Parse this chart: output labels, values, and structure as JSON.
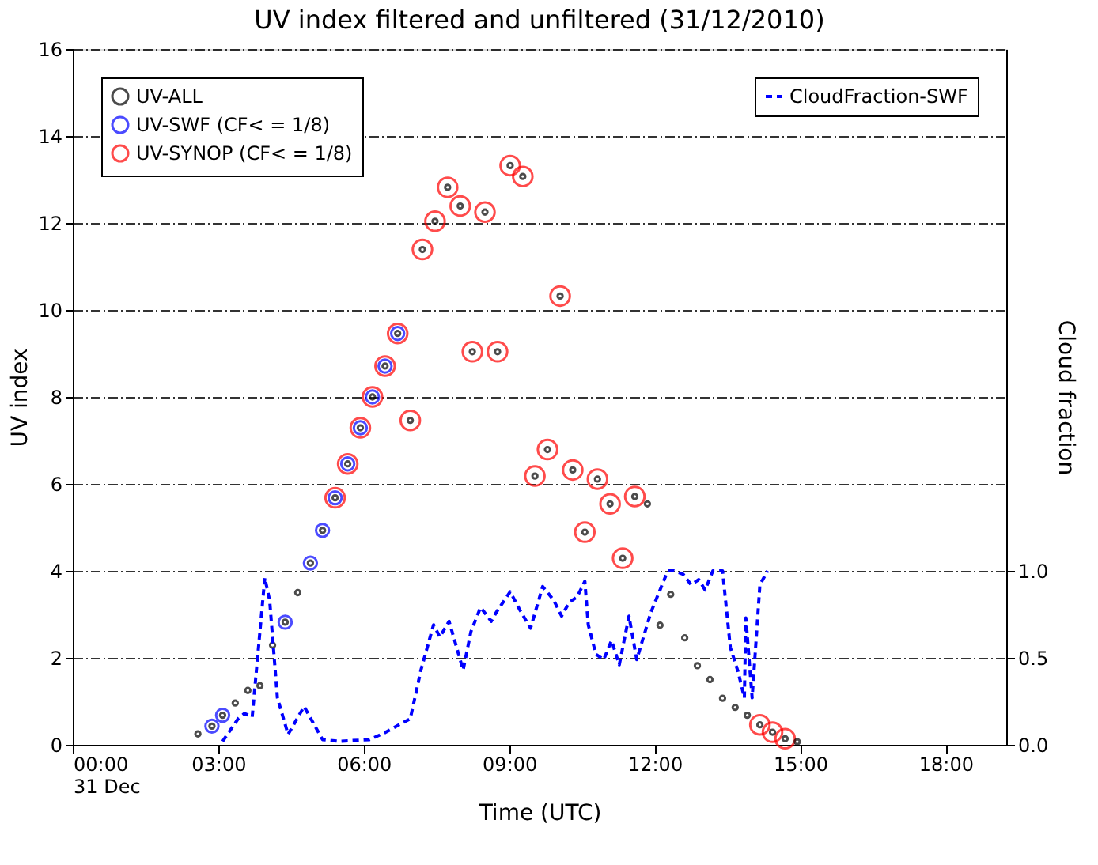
{
  "chart_data": {
    "type": "scatter",
    "title": "UV index filtered and unfiltered (31/12/2010)",
    "xlabel": "Time (UTC)",
    "ylabel": "UV index",
    "y2label": "Cloud fraction",
    "xlim": [
      0,
      19.25
    ],
    "xticks": [
      {
        "value": 0,
        "label": "00:00\n31 Dec"
      },
      {
        "value": 3,
        "label": "03:00"
      },
      {
        "value": 6,
        "label": "06:00"
      },
      {
        "value": 9,
        "label": "09:00"
      },
      {
        "value": 12,
        "label": "12:00"
      },
      {
        "value": 15,
        "label": "15:00"
      },
      {
        "value": 18,
        "label": "18:00"
      }
    ],
    "ylim": [
      0,
      16
    ],
    "yticks": [
      0,
      2,
      4,
      6,
      8,
      10,
      12,
      14,
      16
    ],
    "y2lim": [
      0,
      4
    ],
    "y2ticks": [
      {
        "value": 0,
        "label": "0.0"
      },
      {
        "value": 0.5,
        "label": "0.5"
      },
      {
        "value": 1,
        "label": "1.0"
      }
    ],
    "grid": "y",
    "legend": "top",
    "series": [
      {
        "name": "UV-SYNOP (CF< = 1/8)",
        "marker": "circle",
        "color": "#ff0000",
        "x": [
          5.41,
          5.67,
          5.93,
          6.18,
          6.44,
          6.7,
          6.96,
          7.21,
          7.47,
          7.73,
          7.99,
          8.24,
          8.5,
          8.76,
          9.02,
          9.28,
          9.53,
          9.79,
          10.05,
          10.31,
          10.56,
          10.82,
          11.08,
          11.34,
          11.59,
          14.17,
          14.43,
          14.69
        ],
        "values": [
          5.68,
          6.46,
          7.29,
          8.0,
          8.71,
          9.46,
          7.46,
          11.39,
          12.04,
          12.82,
          12.39,
          9.04,
          12.25,
          9.04,
          13.32,
          13.07,
          6.18,
          6.79,
          10.32,
          6.32,
          4.89,
          6.11,
          5.54,
          4.29,
          5.71,
          0.46,
          0.29,
          0.14
        ]
      },
      {
        "name": "UV-SWF (CF< = 1/8)",
        "marker": "circle",
        "color": "#0000ff",
        "x": [
          2.87,
          3.09,
          4.38,
          4.9,
          5.15,
          5.41,
          5.67,
          5.93,
          6.18,
          6.44,
          6.7
        ],
        "values": [
          0.43,
          0.68,
          2.82,
          4.18,
          4.93,
          5.68,
          6.46,
          7.29,
          8.0,
          8.71,
          9.46
        ]
      },
      {
        "name": "UV-ALL",
        "marker": "circle",
        "color": "#000000",
        "x": [
          2.58,
          2.87,
          3.09,
          3.35,
          3.61,
          3.86,
          4.12,
          4.38,
          4.64,
          4.9,
          5.15,
          5.41,
          5.67,
          5.93,
          6.18,
          6.44,
          6.7,
          6.96,
          7.21,
          7.47,
          7.73,
          7.99,
          8.24,
          8.5,
          8.76,
          9.02,
          9.28,
          9.53,
          9.79,
          10.05,
          10.31,
          10.56,
          10.82,
          11.08,
          11.34,
          11.59,
          11.85,
          12.11,
          12.33,
          12.62,
          12.88,
          13.14,
          13.4,
          13.66,
          13.91,
          14.17,
          14.43,
          14.69,
          14.94
        ],
        "values": [
          0.25,
          0.43,
          0.68,
          0.96,
          1.25,
          1.36,
          2.29,
          2.82,
          3.5,
          4.18,
          4.93,
          5.68,
          6.46,
          7.29,
          8.0,
          8.71,
          9.46,
          7.46,
          11.39,
          12.04,
          12.82,
          12.39,
          9.04,
          12.25,
          9.04,
          13.32,
          13.07,
          6.18,
          6.79,
          10.32,
          6.32,
          4.89,
          6.11,
          5.54,
          4.29,
          5.71,
          5.54,
          2.75,
          3.46,
          2.46,
          1.82,
          1.5,
          1.07,
          0.86,
          0.68,
          0.46,
          0.29,
          0.14,
          0.07
        ]
      },
      {
        "name": "CloudFraction-SWF",
        "type": "line",
        "axis": "y2",
        "line_style": "dashed",
        "color": "#0000ff",
        "x": [
          3.09,
          3.41,
          3.54,
          3.7,
          3.96,
          4.06,
          4.22,
          4.44,
          4.77,
          5.15,
          5.48,
          6.12,
          6.44,
          6.76,
          6.96,
          7.18,
          7.44,
          7.57,
          7.76,
          8.05,
          8.21,
          8.41,
          8.63,
          8.73,
          9.02,
          9.21,
          9.44,
          9.69,
          9.92,
          10.08,
          10.24,
          10.4,
          10.56,
          10.63,
          10.79,
          10.95,
          11.11,
          11.27,
          11.47,
          11.63,
          11.92,
          12.11,
          12.27,
          12.4,
          12.59,
          12.75,
          12.91,
          13.04,
          13.2,
          13.4,
          13.56,
          13.72,
          13.85,
          13.88,
          14.01,
          14.17,
          14.33
        ],
        "values": [
          0.02,
          0.15,
          0.18,
          0.16,
          0.96,
          0.83,
          0.27,
          0.06,
          0.22,
          0.03,
          0.02,
          0.03,
          0.07,
          0.12,
          0.15,
          0.43,
          0.69,
          0.62,
          0.71,
          0.43,
          0.65,
          0.79,
          0.71,
          0.76,
          0.88,
          0.78,
          0.67,
          0.91,
          0.83,
          0.74,
          0.82,
          0.85,
          0.94,
          0.69,
          0.52,
          0.49,
          0.6,
          0.46,
          0.74,
          0.49,
          0.76,
          0.89,
          1.0,
          1.0,
          0.98,
          0.92,
          0.95,
          0.89,
          1.0,
          1.0,
          0.56,
          0.42,
          0.27,
          0.73,
          0.27,
          0.92,
          1.0
        ]
      }
    ]
  }
}
